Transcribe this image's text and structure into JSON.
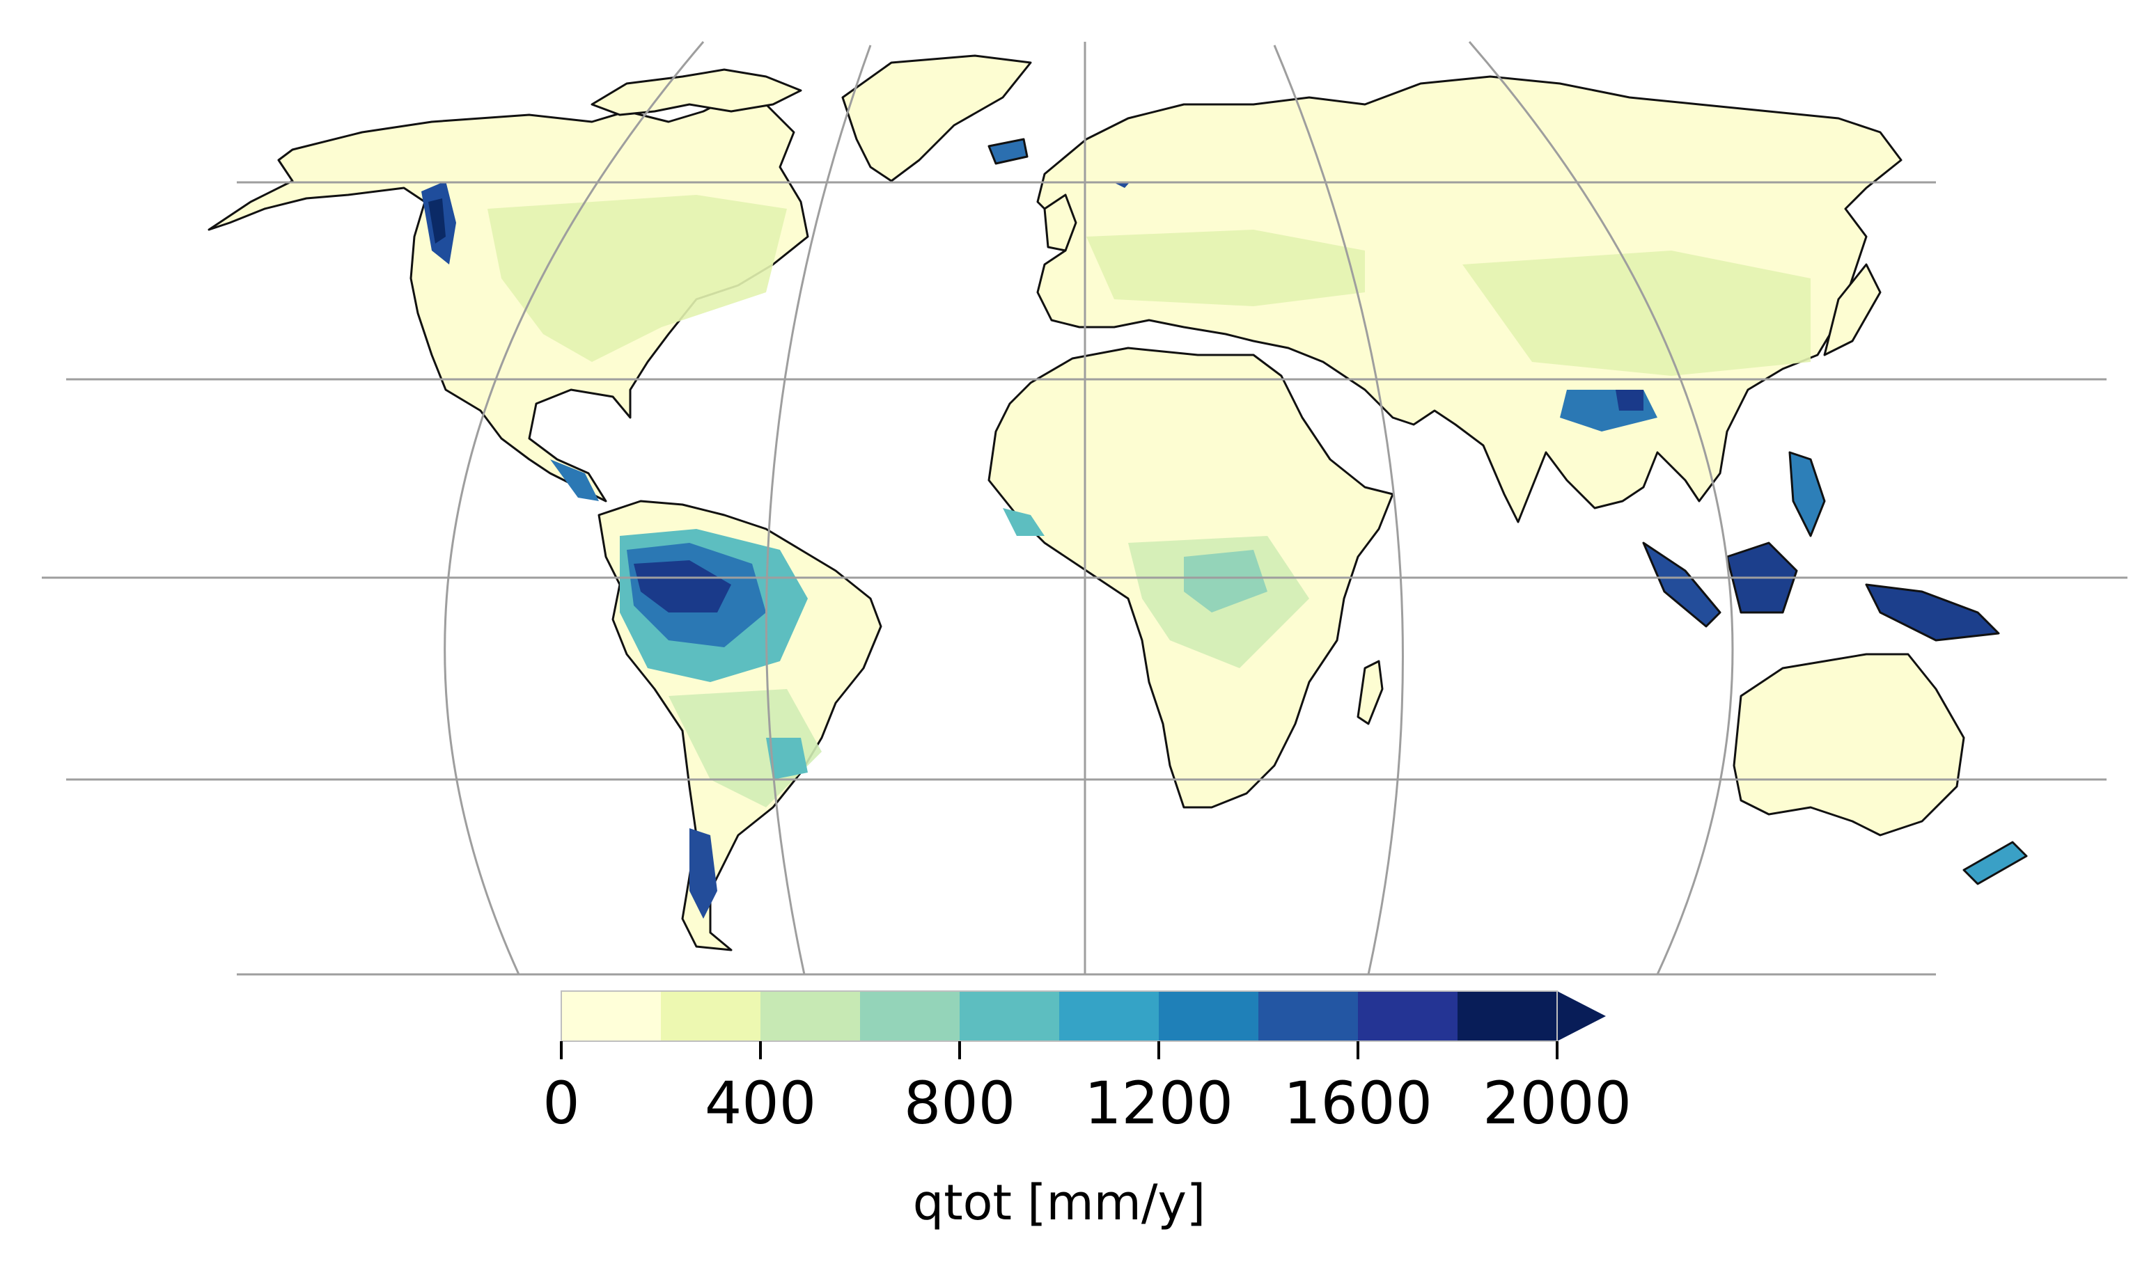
{
  "colorbar": {
    "label": "qtot [mm/y]",
    "ticks": [
      "0",
      "400",
      "800",
      "1200",
      "1600",
      "2000"
    ],
    "bin_edges": [
      0,
      200,
      400,
      600,
      800,
      1000,
      1200,
      1400,
      1600,
      1800,
      2000
    ],
    "extend": "max",
    "colors": [
      "#ffffd9",
      "#edf8b1",
      "#c7e9b4",
      "#94d4b9",
      "#5dbec0",
      "#35a3c6",
      "#1f80b8",
      "#2356a3",
      "#243494",
      "#081d58"
    ]
  },
  "map": {
    "projection": "Robinson",
    "gridlines": true,
    "coastlines": true,
    "grid_color": "#9e9e9e",
    "coast_color": "#000000"
  }
}
